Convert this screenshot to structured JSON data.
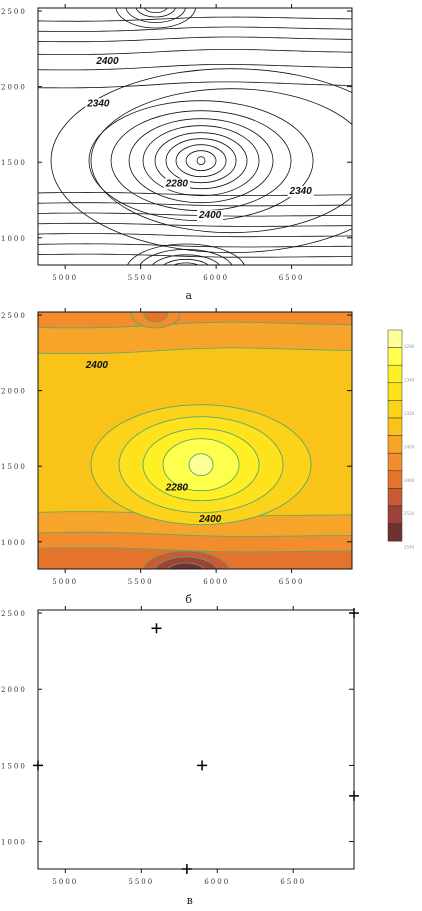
{
  "chart_data": [
    {
      "type": "contour",
      "panel_label": "а",
      "x_ticks": [
        5000,
        5500,
        6000,
        6500
      ],
      "y_ticks": [
        1000,
        1500,
        2000,
        2500
      ],
      "xlim": [
        4820,
        6900
      ],
      "ylim": [
        820,
        2520
      ],
      "center": [
        5900,
        1510
      ],
      "field_range": [
        2240,
        2540
      ],
      "contour_labels": [
        {
          "text": "2400",
          "x": 5280,
          "y": 2150
        },
        {
          "text": "2340",
          "x": 5220,
          "y": 1870
        },
        {
          "text": "2280",
          "x": 5740,
          "y": 1340
        },
        {
          "text": "2340",
          "x": 6560,
          "y": 1290
        },
        {
          "text": "2400",
          "x": 5960,
          "y": 1130
        }
      ]
    },
    {
      "type": "filled-contour",
      "panel_label": "б",
      "x_ticks": [
        5000,
        5500,
        6000,
        6500
      ],
      "y_ticks": [
        1000,
        1500,
        2000,
        2500
      ],
      "xlim": [
        4820,
        6900
      ],
      "ylim": [
        820,
        2520
      ],
      "center": [
        5900,
        1510
      ],
      "field_range": [
        2240,
        2540
      ],
      "contour_labels": [
        {
          "text": "2400",
          "x": 5210,
          "y": 2150
        },
        {
          "text": "2280",
          "x": 5740,
          "y": 1340
        },
        {
          "text": "2400",
          "x": 5960,
          "y": 1130
        }
      ],
      "legend_colors": [
        "#ffff99",
        "#ffff4d",
        "#fff026",
        "#fde21d",
        "#fbd31a",
        "#f9c319",
        "#f7a52a",
        "#f28c2c",
        "#e4742c",
        "#c85a34",
        "#9e4136",
        "#6e3030"
      ],
      "legend_labels": [
        "2280",
        "2340",
        "2320",
        "2400",
        "2460",
        "2520",
        "2540"
      ]
    },
    {
      "type": "scatter",
      "panel_label": "в",
      "x_ticks": [
        5000,
        5500,
        6000,
        6500
      ],
      "y_ticks": [
        1000,
        1500,
        2000,
        2500
      ],
      "xlim": [
        4820,
        6900
      ],
      "ylim": [
        820,
        2520
      ],
      "points": [
        {
          "x": 5600,
          "y": 2400
        },
        {
          "x": 6900,
          "y": 2500
        },
        {
          "x": 4820,
          "y": 1500
        },
        {
          "x": 5900,
          "y": 1500
        },
        {
          "x": 6900,
          "y": 1300
        },
        {
          "x": 5800,
          "y": 820
        }
      ]
    }
  ]
}
